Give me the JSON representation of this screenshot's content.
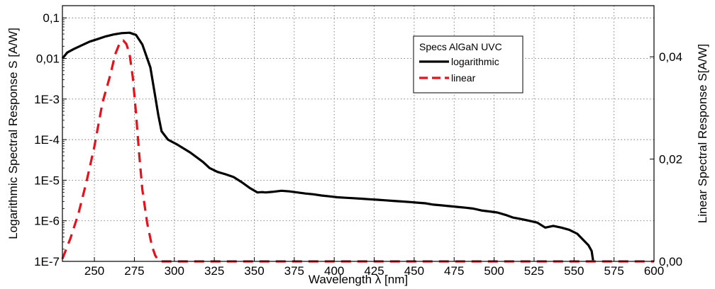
{
  "chart_data": {
    "type": "line",
    "title": "",
    "xlabel": "Wavelength λ [nm]",
    "ylabel_left": "Logarithmic Spectral Response S [A/W]",
    "ylabel_right": "Linear Spectral Response S[A/W]",
    "xlim": [
      230,
      600
    ],
    "ylim_left": [
      1e-07,
      0.2
    ],
    "ylim_right": [
      0,
      0.05
    ],
    "left_scale": "log",
    "grid": true,
    "grid_style": "dotted",
    "legend": {
      "title": "Specs AlGaN UVC",
      "placement": "upper-right"
    },
    "x_ticks": [
      "250",
      "275",
      "300",
      "325",
      "350",
      "375",
      "400",
      "425",
      "450",
      "475",
      "500",
      "525",
      "550",
      "575",
      "600"
    ],
    "y_left_ticks": [
      "0,1",
      "0,01",
      "1E-3",
      "1E-4",
      "1E-5",
      "1E-6",
      "1E-7"
    ],
    "y_right_ticks": [
      "0,00",
      "0,02",
      "0,04"
    ],
    "series": [
      {
        "name": "logarithmic",
        "axis": "left",
        "color": "#000000",
        "style": "solid",
        "x": [
          230,
          233,
          237,
          242,
          247,
          252,
          257,
          262,
          267,
          272,
          276,
          280,
          285,
          288,
          290,
          292,
          296,
          302,
          310,
          318,
          322,
          327,
          332,
          337,
          342,
          347,
          352,
          355,
          357,
          362,
          367,
          372,
          377,
          382,
          387,
          392,
          397,
          402,
          407,
          412,
          417,
          422,
          427,
          432,
          437,
          442,
          447,
          452,
          457,
          462,
          467,
          472,
          477,
          482,
          487,
          492,
          497,
          502,
          507,
          512,
          517,
          522,
          527,
          532,
          537,
          542,
          547,
          552,
          556,
          559,
          561,
          562
        ],
        "y": [
          0.01,
          0.014,
          0.017,
          0.021,
          0.026,
          0.03,
          0.035,
          0.039,
          0.042,
          0.043,
          0.038,
          0.022,
          0.006,
          0.0012,
          0.0004,
          0.00016,
          0.0001,
          7.5e-05,
          4.8e-05,
          2.8e-05,
          2e-05,
          1.6e-05,
          1.4e-05,
          1.2e-05,
          9e-06,
          6.5e-06,
          5e-06,
          5.1e-06,
          5e-06,
          5.2e-06,
          5.5e-06,
          5.3e-06,
          5e-06,
          4.7e-06,
          4.5e-06,
          4.2e-06,
          4e-06,
          3.8e-06,
          3.7e-06,
          3.6e-06,
          3.5e-06,
          3.4e-06,
          3.3e-06,
          3.2e-06,
          3.1e-06,
          3e-06,
          2.9e-06,
          2.8e-06,
          2.7e-06,
          2.5e-06,
          2.4e-06,
          2.3e-06,
          2.2e-06,
          2.1e-06,
          2e-06,
          1.8e-06,
          1.7e-06,
          1.6e-06,
          1.4e-06,
          1.2e-06,
          1.1e-06,
          1e-06,
          9e-07,
          6.8e-07,
          7.5e-07,
          6.8e-07,
          6e-07,
          4.8e-07,
          3.3e-07,
          2.5e-07,
          1.8e-07,
          1e-07
        ]
      },
      {
        "name": "linear",
        "axis": "right",
        "color": "#e8101a",
        "style": "dashed",
        "x": [
          230,
          235,
          240,
          245,
          250,
          255,
          260,
          263,
          266,
          268,
          270,
          272,
          274,
          276,
          278,
          280,
          283,
          286,
          288,
          290,
          291,
          600
        ],
        "y": [
          0.0005,
          0.0045,
          0.0093,
          0.0155,
          0.0225,
          0.031,
          0.0365,
          0.0405,
          0.0428,
          0.0432,
          0.0425,
          0.0405,
          0.036,
          0.029,
          0.021,
          0.014,
          0.0075,
          0.003,
          0.0012,
          0.0002,
          0.0,
          0.0
        ]
      }
    ]
  }
}
